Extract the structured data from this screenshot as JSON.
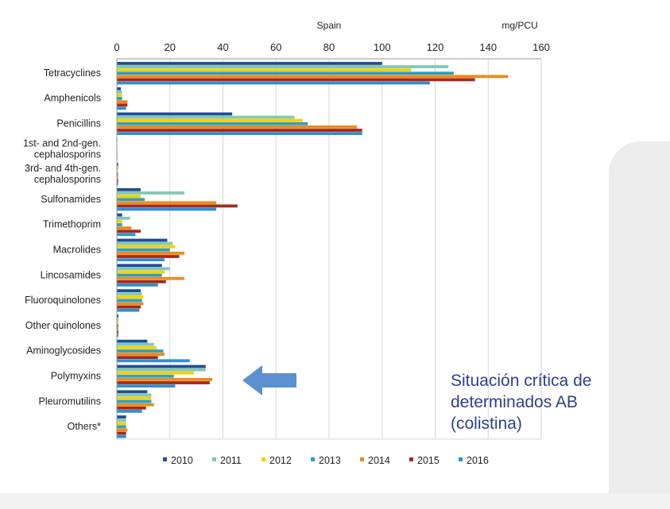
{
  "slide": {
    "callout_lines": [
      "Situación crítica de",
      "determinados AB",
      "(colistina)"
    ],
    "callout_color": "#2b3f8f",
    "arrow_color": "#5b8fd0"
  },
  "chart_data": {
    "type": "bar",
    "orientation": "horizontal",
    "title": "Spain",
    "unit_label": "mg/PCU",
    "xlim": [
      0,
      160
    ],
    "xticks": [
      0,
      20,
      40,
      60,
      80,
      100,
      120,
      140,
      160
    ],
    "grid": true,
    "legend_position": "bottom",
    "categories": [
      "Tetracyclines",
      "Amphenicols",
      "Penicillins",
      "1st- and 2nd-gen.\ncephalosporins",
      "3rd- and 4th-gen.\ncephalosporins",
      "Sulfonamides",
      "Trimethoprim",
      "Macrolides",
      "Lincosamides",
      "Fluoroquinolones",
      "Other quinolones",
      "Aminoglycosides",
      "Polymyxins",
      "Pleuromutilins",
      "Others*"
    ],
    "series": [
      {
        "name": "2010",
        "color": "#1f4e96",
        "values": [
          100,
          1.5,
          43.5,
          0.2,
          0.5,
          9,
          2,
          19,
          17,
          9,
          0.6,
          11.5,
          33.5,
          11.5,
          3.5
        ]
      },
      {
        "name": "2011",
        "color": "#7fc9b5",
        "values": [
          125,
          2,
          67,
          0.2,
          0.5,
          25.5,
          5,
          21,
          20,
          9.5,
          0.6,
          14,
          33.5,
          13,
          3.5
        ]
      },
      {
        "name": "2012",
        "color": "#f7d000",
        "values": [
          111,
          2,
          70,
          0.2,
          0.5,
          9,
          2,
          22,
          18,
          10,
          0.6,
          15,
          29,
          13,
          3.5
        ]
      },
      {
        "name": "2013",
        "color": "#2aa0c6",
        "values": [
          127,
          2,
          72,
          0.2,
          0.5,
          10.5,
          2,
          20,
          17,
          9.5,
          0.6,
          17.5,
          21.5,
          13,
          3.5
        ]
      },
      {
        "name": "2014",
        "color": "#ee8a1b",
        "values": [
          147.5,
          4,
          90.5,
          0.2,
          0.5,
          37.5,
          5.5,
          25.5,
          25.5,
          10,
          0.6,
          18,
          36,
          14,
          4
        ]
      },
      {
        "name": "2015",
        "color": "#a3291c",
        "values": [
          135,
          4,
          92.5,
          0.2,
          0.5,
          45.5,
          9,
          23.5,
          18.5,
          9,
          0.6,
          15.5,
          35,
          11,
          3.5
        ]
      },
      {
        "name": "2016",
        "color": "#2f8fce",
        "values": [
          118,
          3.5,
          92.5,
          0.2,
          0.5,
          37.5,
          7,
          18,
          15.5,
          8.5,
          0.6,
          27.5,
          22,
          9.5,
          3.5
        ]
      }
    ]
  }
}
